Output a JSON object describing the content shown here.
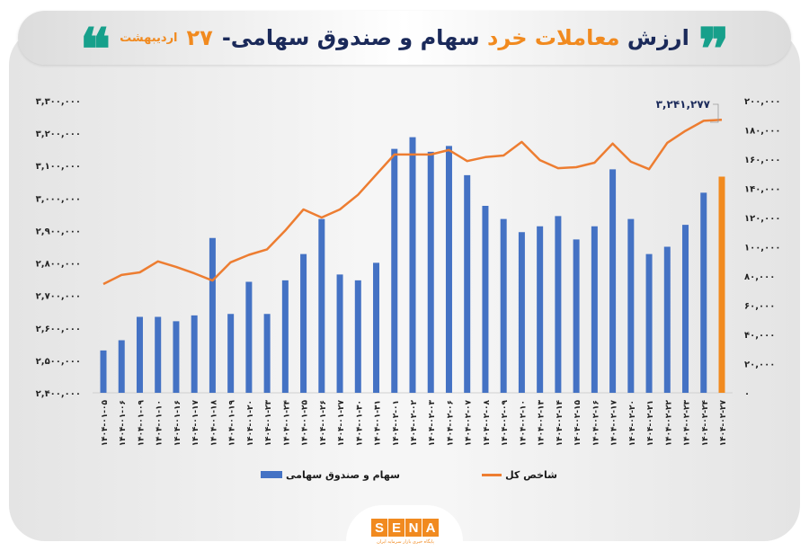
{
  "header": {
    "title_part1": "ارزش",
    "title_highlight": "معاملات خرد",
    "title_part2": "سهام و صندوق سهامی-",
    "title_day": "۲۷",
    "title_month": "اردیبهشت",
    "quote_open": "❞",
    "quote_close": "❝",
    "quote_color": "#17a08b"
  },
  "legend": {
    "bar_label": "سهام و صندوق سهامی",
    "line_label": "شاخص کل"
  },
  "annotation": {
    "last_index_value": "۳,۲۴۱,۲۷۷"
  },
  "axes": {
    "left_ticks": [
      "۳,۳۰۰,۰۰۰",
      "۳,۲۰۰,۰۰۰",
      "۳,۱۰۰,۰۰۰",
      "۳,۰۰۰,۰۰۰",
      "۲,۹۰۰,۰۰۰",
      "۲,۸۰۰,۰۰۰",
      "۲,۷۰۰,۰۰۰",
      "۲,۶۰۰,۰۰۰",
      "۲,۵۰۰,۰۰۰",
      "۲,۴۰۰,۰۰۰"
    ],
    "right_ticks": [
      "۲۰۰,۰۰۰",
      "۱۸۰,۰۰۰",
      "۱۶۰,۰۰۰",
      "۱۴۰,۰۰۰",
      "۱۲۰,۰۰۰",
      "۱۰۰,۰۰۰",
      "۸۰,۰۰۰",
      "۶۰,۰۰۰",
      "۴۰,۰۰۰",
      "۲۰,۰۰۰",
      "۰"
    ]
  },
  "footer": {
    "logo_letters": [
      "S",
      "E",
      "N",
      "A"
    ],
    "logo_subtitle": "پایگاه خبری بازار سرمایه ایران"
  },
  "colors": {
    "bar": "#4472c4",
    "bar_highlight": "#f18a1f",
    "line": "#ed7d31",
    "title_dark": "#1b2a5a",
    "accent": "#f18a1f"
  },
  "chart_data": {
    "type": "bar",
    "title": "ارزش معاملات خرد سهام و صندوق سهامی- ۲۷ اردیبهشت",
    "xlabel": "",
    "ylabel_left": "شاخص کل",
    "ylabel_right": "سهام و صندوق سهامی",
    "categories": [
      "۱۴۰۴-۰۱-۰۵",
      "۱۴۰۴-۰۱-۰۶",
      "۱۴۰۴-۰۱-۰۹",
      "۱۴۰۴-۰۱-۱۰",
      "۱۴۰۴-۰۱-۱۶",
      "۱۴۰۴-۰۱-۱۷",
      "۱۴۰۴-۰۱-۱۸",
      "۱۴۰۴-۰۱-۱۹",
      "۱۴۰۴-۰۱-۲۰",
      "۱۴۰۴-۰۱-۲۳",
      "۱۴۰۴-۰۱-۲۴",
      "۱۴۰۴-۰۱-۲۵",
      "۱۴۰۴-۰۱-۲۶",
      "۱۴۰۴-۰۱-۲۷",
      "۱۴۰۴-۰۱-۳۰",
      "۱۴۰۴-۰۱-۳۱",
      "۱۴۰۴-۰۲-۰۱",
      "۱۴۰۴-۰۲-۰۲",
      "۱۴۰۴-۰۲-۰۳",
      "۱۴۰۴-۰۲-۰۶",
      "۱۴۰۴-۰۲-۰۷",
      "۱۴۰۴-۰۲-۰۸",
      "۱۴۰۴-۰۲-۰۹",
      "۱۴۰۴-۰۲-۱۰",
      "۱۴۰۴-۰۲-۱۳",
      "۱۴۰۴-۰۲-۱۴",
      "۱۴۰۴-۰۲-۱۵",
      "۱۴۰۴-۰۲-۱۶",
      "۱۴۰۴-۰۲-۱۷",
      "۱۴۰۴-۰۲-۲۰",
      "۱۴۰۴-۰۲-۲۱",
      "۱۴۰۴-۰۲-۲۲",
      "۱۴۰۴-۰۲-۲۳",
      "۱۴۰۴-۰۲-۲۴",
      "۱۴۰۴-۰۲-۲۷"
    ],
    "series": [
      {
        "name": "سهام و صندوق سهامی",
        "type": "bar",
        "axis": "right",
        "values": [
          29000,
          36000,
          52000,
          52000,
          49000,
          53000,
          106000,
          54000,
          76000,
          54000,
          77000,
          95000,
          119000,
          81000,
          77000,
          89000,
          167000,
          175000,
          165000,
          169000,
          149000,
          128000,
          119000,
          110000,
          114000,
          121000,
          105000,
          114000,
          153000,
          119000,
          95000,
          100000,
          115000,
          137000,
          148000
        ]
      },
      {
        "name": "شاخص کل",
        "type": "line",
        "axis": "left",
        "values": [
          2735000,
          2763000,
          2771000,
          2805000,
          2788000,
          2768000,
          2746000,
          2802000,
          2825000,
          2842000,
          2900000,
          2965000,
          2940000,
          2965000,
          3010000,
          3072000,
          3134000,
          3134000,
          3134000,
          3148000,
          3114000,
          3126000,
          3131000,
          3173000,
          3117000,
          3092000,
          3095000,
          3109000,
          3168000,
          3112000,
          3089000,
          3170000,
          3207000,
          3238000,
          3241277
        ]
      }
    ],
    "ylim_left": [
      2400000,
      3300000
    ],
    "ylim_right": [
      0,
      200000
    ],
    "annotations": [
      {
        "x": "۱۴۰۴-۰۲-۲۷",
        "series": "شاخص کل",
        "text": "۳,۲۴۱,۲۷۷"
      }
    ],
    "highlight_last_bar": true,
    "grid": false,
    "legend_position": "bottom"
  }
}
